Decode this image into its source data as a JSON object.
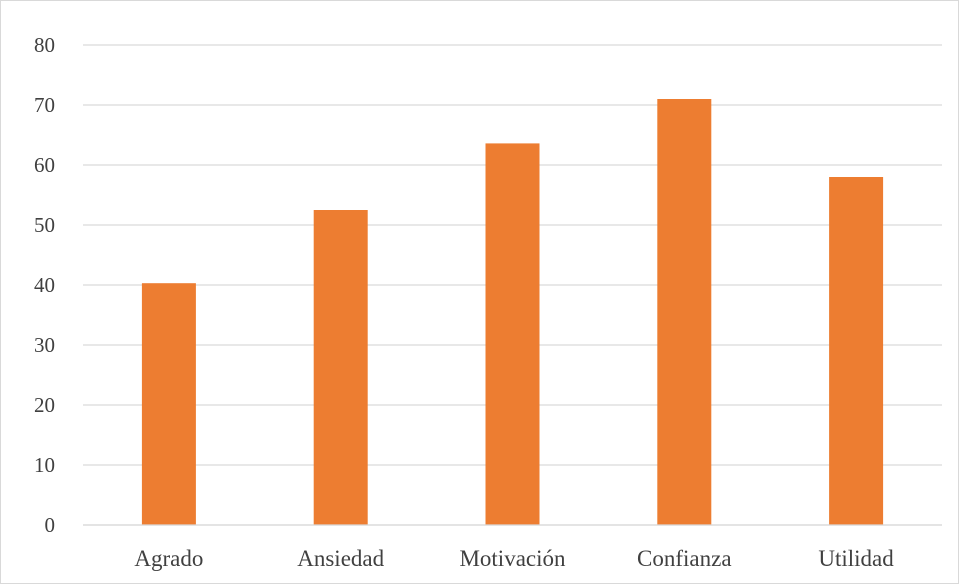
{
  "chart_data": {
    "type": "bar",
    "title": "",
    "xlabel": "",
    "ylabel": "",
    "categories": [
      "Agrado",
      "Ansiedad",
      "Motivación",
      "Confianza",
      "Utilidad"
    ],
    "values": [
      40.3,
      52.5,
      63.6,
      71.0,
      58.0
    ],
    "ylim": [
      0,
      80
    ],
    "yticks": [
      "0",
      "10",
      "20",
      "30",
      "40",
      "50",
      "60",
      "70",
      "80"
    ],
    "grid": true,
    "legend": "none",
    "colors": {
      "bar": "#ED7D31",
      "grid": "#D9D9D9",
      "text": "#404040",
      "border": "#D9D9D9"
    }
  }
}
